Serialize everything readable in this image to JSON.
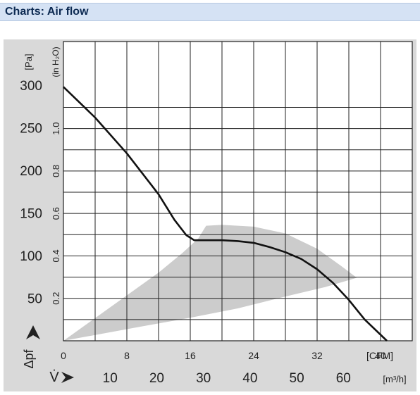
{
  "header": {
    "title": "Charts: Air flow"
  },
  "chart_data": {
    "type": "line",
    "title": "",
    "ylabel_left": "[Pa]",
    "ylabel_inner": "(in H₂O)",
    "dp_label": "Δpf",
    "vdot_label": "V̇",
    "xlabel_cfm": "[CFM]",
    "xlabel_m3h": "[m³/h]",
    "ylim": [
      0,
      300
    ],
    "xlim_cfm": [
      0,
      44
    ],
    "pa_ticks": [
      50,
      100,
      150,
      200,
      250,
      300
    ],
    "inh2o_ticks": [
      {
        "value": 0.2,
        "label": "0.2"
      },
      {
        "value": 0.4,
        "label": "0.4"
      },
      {
        "value": 0.6,
        "label": "0.6"
      },
      {
        "value": 0.8,
        "label": "0.8"
      },
      {
        "value": 1.0,
        "label": "1.0"
      }
    ],
    "cfm_ticks": [
      0,
      8,
      16,
      24,
      32,
      40
    ],
    "m3h_ticks": [
      10,
      20,
      30,
      40,
      50,
      60
    ],
    "series": [
      {
        "x": [
          0,
          4,
          8,
          12,
          14,
          15.5,
          16.5,
          18,
          20,
          22,
          24,
          26,
          28,
          30,
          32,
          34,
          36,
          38,
          40.8
        ],
        "y": [
          298,
          262,
          220,
          172,
          142,
          124,
          118,
          118,
          118,
          117,
          115,
          110,
          104,
          96,
          84,
          68,
          48,
          25,
          0
        ]
      }
    ],
    "shaded_region": {
      "x": [
        0,
        6,
        12,
        15,
        17,
        18,
        20,
        24,
        28,
        32,
        35,
        37,
        33,
        28,
        22,
        16,
        10,
        0
      ],
      "y": [
        0,
        40,
        80,
        103,
        120,
        135,
        136,
        134,
        126,
        108,
        88,
        74,
        63,
        52,
        38,
        27,
        17,
        0
      ]
    },
    "grid": true,
    "curve_color": "#111111",
    "region_color": "#cccccc"
  }
}
